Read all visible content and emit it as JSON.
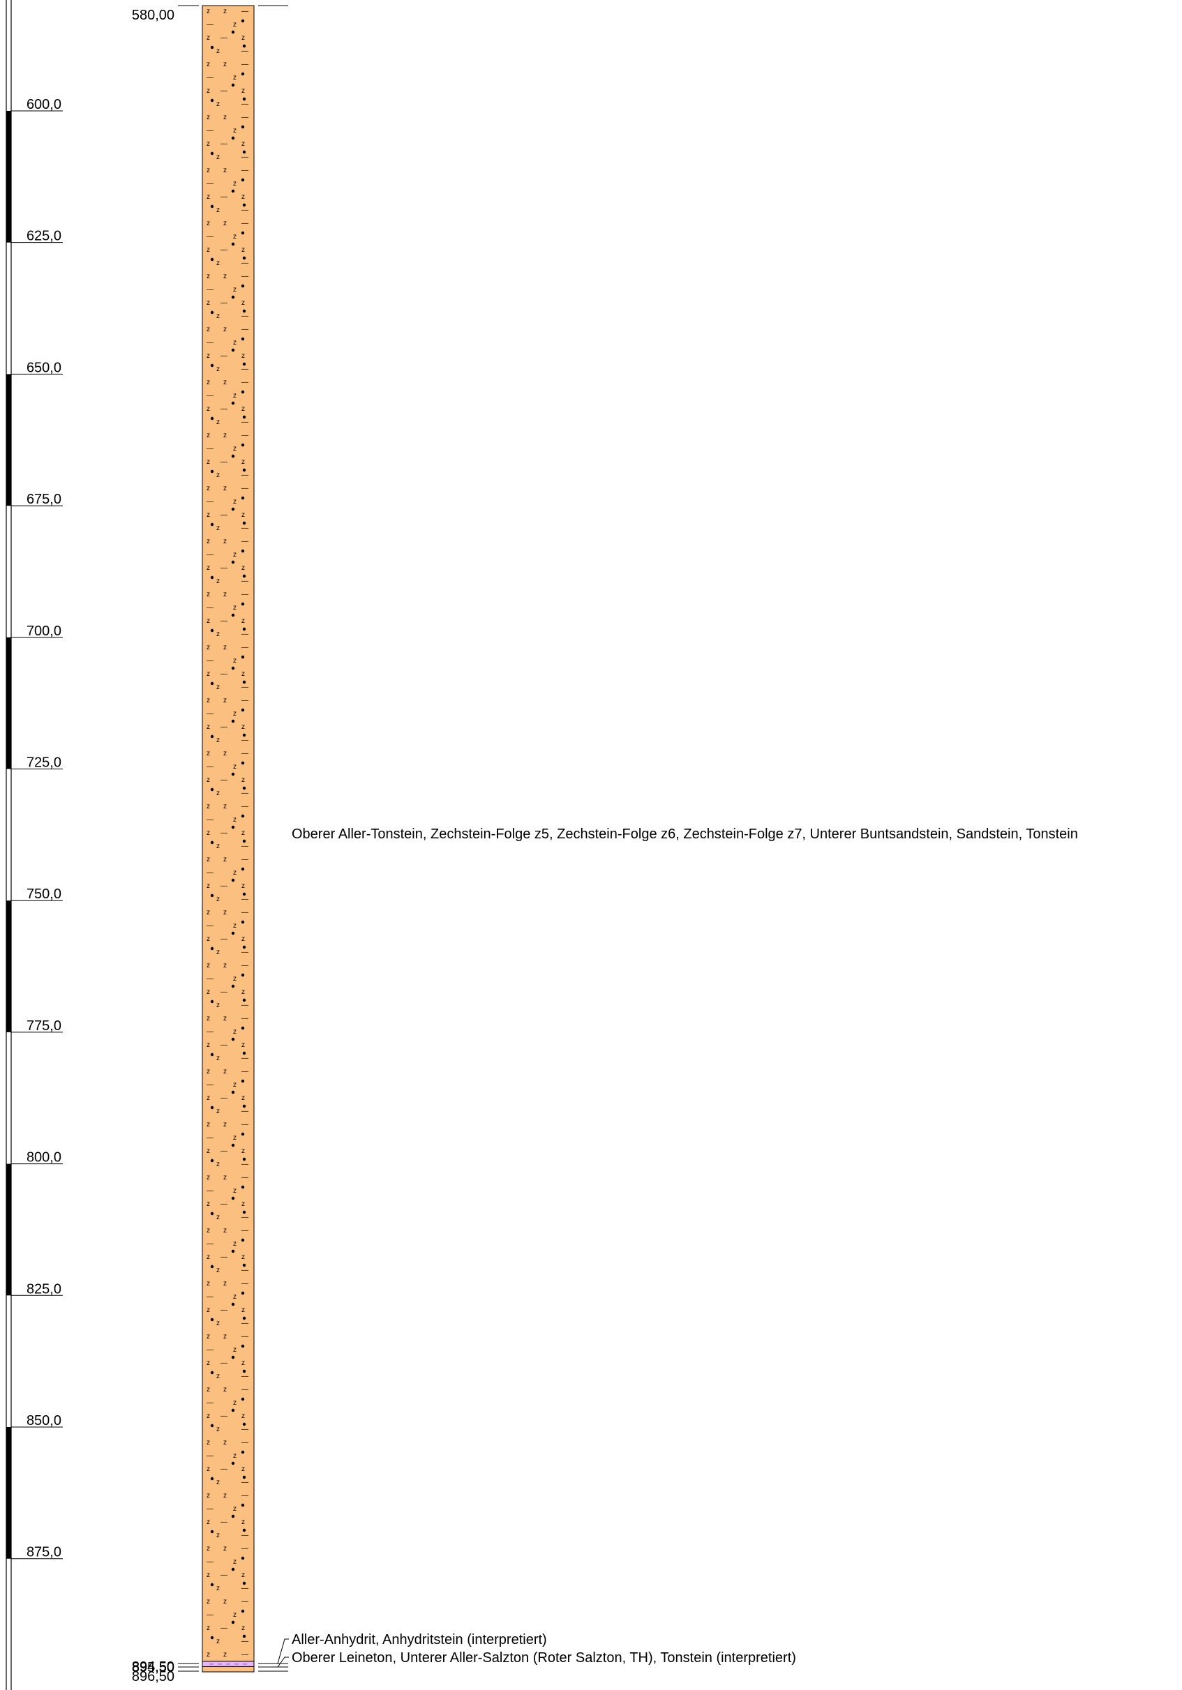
{
  "scale": {
    "ticks": [
      {
        "depth": 600,
        "label": "600,0"
      },
      {
        "depth": 625,
        "label": "625,0"
      },
      {
        "depth": 650,
        "label": "650,0"
      },
      {
        "depth": 675,
        "label": "675,0"
      },
      {
        "depth": 700,
        "label": "700,0"
      },
      {
        "depth": 725,
        "label": "725,0"
      },
      {
        "depth": 750,
        "label": "750,0"
      },
      {
        "depth": 775,
        "label": "775,0"
      },
      {
        "depth": 800,
        "label": "800,0"
      },
      {
        "depth": 825,
        "label": "825,0"
      },
      {
        "depth": 850,
        "label": "850,0"
      },
      {
        "depth": 875,
        "label": "875,0"
      }
    ],
    "black_bands": [
      [
        600,
        625
      ],
      [
        650,
        675
      ],
      [
        700,
        725
      ],
      [
        750,
        775
      ],
      [
        800,
        825
      ],
      [
        850,
        875
      ]
    ]
  },
  "log": {
    "top_depth": 580,
    "bottom_depth": 896.5
  },
  "layers": [
    {
      "top": 580.0,
      "bottom": 894.5,
      "top_label": "580,00",
      "bottom_label": "894,50",
      "fill": "#fbbf80",
      "pattern": "tonstein-sandstein-salz",
      "description": "Oberer Aller-Tonstein, Zechstein-Folge z5, Zechstein-Folge z6, Zechstein-Folge z7, Unterer Buntsandstein, Sandstein, Tonstein"
    },
    {
      "top": 894.5,
      "bottom": 895.5,
      "top_label": "894,50",
      "bottom_label": "895,50",
      "fill": "#e6b6ff",
      "pattern": "anhydrit",
      "description": "Aller-Anhydrit, Anhydritstein (interpretiert)"
    },
    {
      "top": 895.5,
      "bottom": 896.5,
      "top_label": "895,50",
      "bottom_label": "896,50",
      "fill": "#fbbf80",
      "pattern": "tonstein-salz",
      "description": "Oberer Leineton, Unterer Aller-Salzton (Roter Salzton, TH), Tonstein (interpretiert)"
    }
  ],
  "colors": {
    "line": "#000000",
    "scale_band": "#000000",
    "orange_fill": "#fbbf80",
    "pink_fill": "#e6b6ff"
  }
}
